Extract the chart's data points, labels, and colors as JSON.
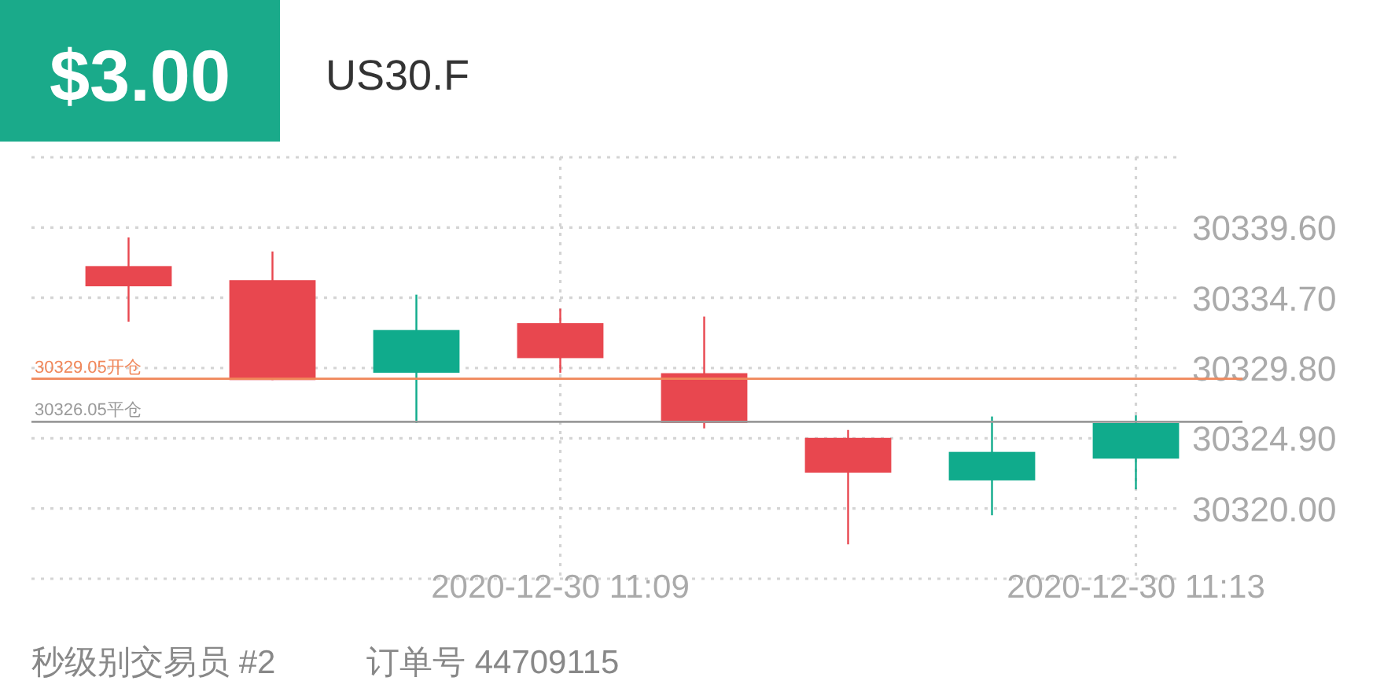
{
  "chart_data": {
    "type": "candlestick",
    "title": "US30.F",
    "subtitle": "$3.00",
    "categories": [
      null,
      null,
      null,
      "2020-12-30 11:09",
      null,
      null,
      null,
      "2020-12-30 11:13"
    ],
    "ohlc": [
      [
        30336.91,
        30338.91,
        30333.03,
        30335.5
      ],
      [
        30335.93,
        30337.93,
        30328.96,
        30328.96
      ],
      [
        30329.47,
        30334.92,
        30325.96,
        30332.45
      ],
      [
        30332.93,
        30333.94,
        30329.47,
        30330.49
      ],
      [
        30329.44,
        30333.39,
        30325.59,
        30325.96
      ],
      [
        30324.93,
        30325.48,
        30317.5,
        30322.5
      ],
      [
        30321.96,
        30326.42,
        30319.53,
        30323.95
      ],
      [
        30323.48,
        30326.5,
        30321.34,
        30325.96
      ]
    ],
    "colors": [
      "#e8474f",
      "#e8474f",
      "#10ab8c",
      "#e8474f",
      "#e8474f",
      "#e8474f",
      "#10ab8c",
      "#10ab8c"
    ],
    "ylim": [
      30315.1,
      30344.5
    ],
    "yticks": [
      {
        "value": 30344.5,
        "label": null
      },
      {
        "value": 30339.6,
        "label": "30339.60"
      },
      {
        "value": 30334.7,
        "label": "30334.70"
      },
      {
        "value": 30329.8,
        "label": "30329.80"
      },
      {
        "value": 30324.9,
        "label": "30324.90"
      },
      {
        "value": 30320.0,
        "label": "30320.00"
      },
      {
        "value": 30315.1,
        "label": null
      }
    ],
    "ref_lines": [
      {
        "axis": "y",
        "value": 30329.05,
        "label": "30329.05开仓",
        "color": "#f0875a"
      },
      {
        "axis": "y",
        "value": 30326.05,
        "label": "30326.05平仓",
        "color": "#9a9a9a"
      }
    ],
    "grid": true,
    "annotations": [
      "秒级别交易员 #2",
      "订单号 44709115"
    ]
  }
}
